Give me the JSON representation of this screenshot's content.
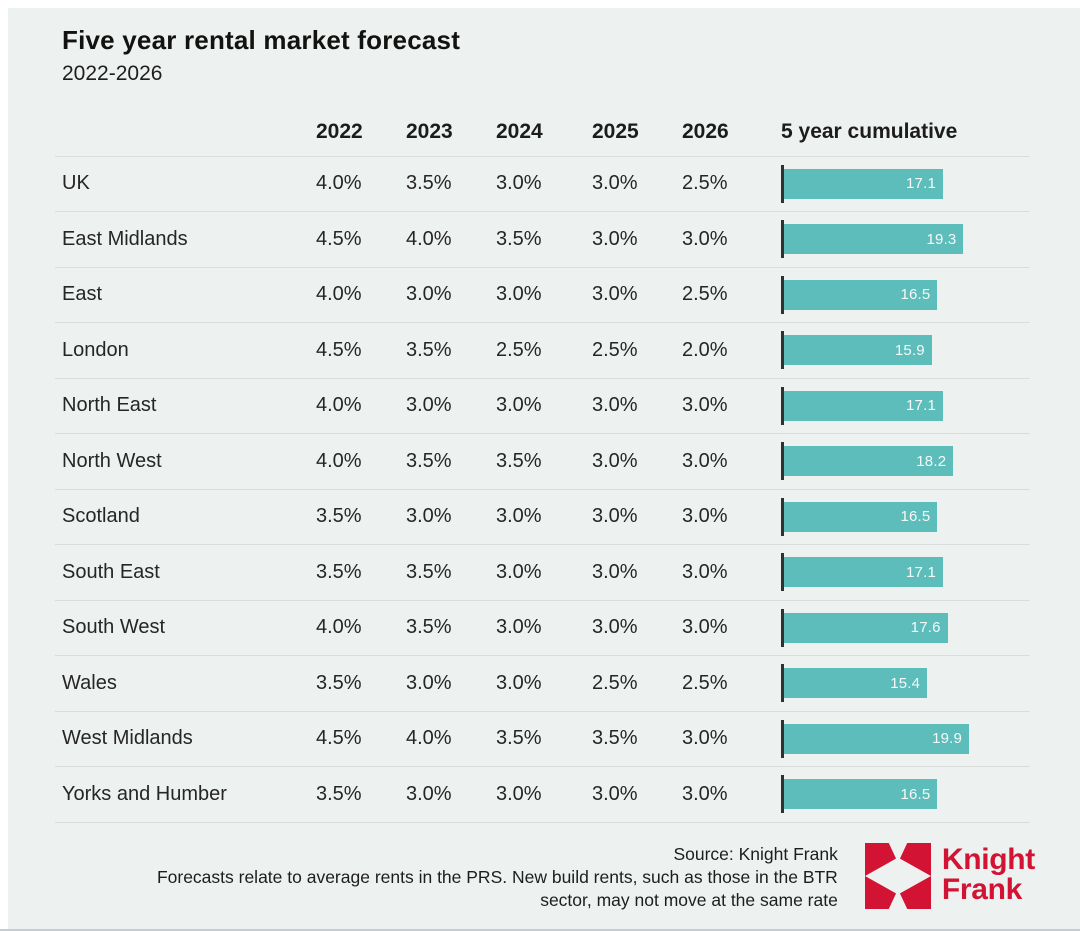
{
  "title": "Five year rental market forecast",
  "subtitle": "2022-2026",
  "table": {
    "region_header": "",
    "columns": [
      "2022",
      "2023",
      "2024",
      "2025",
      "2026"
    ],
    "cumulative_header": "5 year cumulative",
    "rows": [
      {
        "region": "UK",
        "values": [
          "4.0%",
          "3.5%",
          "3.0%",
          "3.0%",
          "2.5%"
        ],
        "cumulative": "17.1"
      },
      {
        "region": "East Midlands",
        "values": [
          "4.5%",
          "4.0%",
          "3.5%",
          "3.0%",
          "3.0%"
        ],
        "cumulative": "19.3"
      },
      {
        "region": "East",
        "values": [
          "4.0%",
          "3.0%",
          "3.0%",
          "3.0%",
          "2.5%"
        ],
        "cumulative": "16.5"
      },
      {
        "region": "London",
        "values": [
          "4.5%",
          "3.5%",
          "2.5%",
          "2.5%",
          "2.0%"
        ],
        "cumulative": "15.9"
      },
      {
        "region": "North East",
        "values": [
          "4.0%",
          "3.0%",
          "3.0%",
          "3.0%",
          "3.0%"
        ],
        "cumulative": "17.1"
      },
      {
        "region": "North West",
        "values": [
          "4.0%",
          "3.5%",
          "3.5%",
          "3.0%",
          "3.0%"
        ],
        "cumulative": "18.2"
      },
      {
        "region": "Scotland",
        "values": [
          "3.5%",
          "3.0%",
          "3.0%",
          "3.0%",
          "3.0%"
        ],
        "cumulative": "16.5"
      },
      {
        "region": "South East",
        "values": [
          "3.5%",
          "3.5%",
          "3.0%",
          "3.0%",
          "3.0%"
        ],
        "cumulative": "17.1"
      },
      {
        "region": "South West",
        "values": [
          "4.0%",
          "3.5%",
          "3.0%",
          "3.0%",
          "3.0%"
        ],
        "cumulative": "17.6"
      },
      {
        "region": "Wales",
        "values": [
          "3.5%",
          "3.0%",
          "3.0%",
          "2.5%",
          "2.5%"
        ],
        "cumulative": "15.4"
      },
      {
        "region": "West Midlands",
        "values": [
          "4.5%",
          "4.0%",
          "3.5%",
          "3.5%",
          "3.0%"
        ],
        "cumulative": "19.9"
      },
      {
        "region": "Yorks and Humber",
        "values": [
          "3.5%",
          "3.0%",
          "3.0%",
          "3.0%",
          "3.0%"
        ],
        "cumulative": "16.5"
      }
    ]
  },
  "footer": {
    "source": "Source: Knight Frank",
    "note_lines": [
      "Forecasts relate to average rents in the PRS. New build rents, such as those in the BTR",
      "sector, may not move at the same rate"
    ],
    "logo_line1": "Knight",
    "logo_line2": "Frank"
  },
  "colors": {
    "background": "#edf1f0",
    "bar_teal": "#5cbdbb",
    "brand_red": "#d21333",
    "separator": "#d9dddc",
    "text": "#1e1e1c",
    "baseline": "#2e3331"
  },
  "chart_data": {
    "type": "table",
    "title": "Five year rental market forecast",
    "subtitle": "2022-2026",
    "columns": [
      "2022",
      "2023",
      "2024",
      "2025",
      "2026",
      "5 year cumulative"
    ],
    "bar_column": "5 year cumulative",
    "bar_range": [
      0,
      20
    ],
    "series": [
      {
        "name": "UK",
        "yearly_pct": [
          4.0,
          3.5,
          3.0,
          3.0,
          2.5
        ],
        "cumulative": 17.1
      },
      {
        "name": "East Midlands",
        "yearly_pct": [
          4.5,
          4.0,
          3.5,
          3.0,
          3.0
        ],
        "cumulative": 19.3
      },
      {
        "name": "East",
        "yearly_pct": [
          4.0,
          3.0,
          3.0,
          3.0,
          2.5
        ],
        "cumulative": 16.5
      },
      {
        "name": "London",
        "yearly_pct": [
          4.5,
          3.5,
          2.5,
          2.5,
          2.0
        ],
        "cumulative": 15.9
      },
      {
        "name": "North East",
        "yearly_pct": [
          4.0,
          3.0,
          3.0,
          3.0,
          3.0
        ],
        "cumulative": 17.1
      },
      {
        "name": "North West",
        "yearly_pct": [
          4.0,
          3.5,
          3.5,
          3.0,
          3.0
        ],
        "cumulative": 18.2
      },
      {
        "name": "Scotland",
        "yearly_pct": [
          3.5,
          3.0,
          3.0,
          3.0,
          3.0
        ],
        "cumulative": 16.5
      },
      {
        "name": "South East",
        "yearly_pct": [
          3.5,
          3.5,
          3.0,
          3.0,
          3.0
        ],
        "cumulative": 17.1
      },
      {
        "name": "South West",
        "yearly_pct": [
          4.0,
          3.5,
          3.0,
          3.0,
          3.0
        ],
        "cumulative": 17.6
      },
      {
        "name": "Wales",
        "yearly_pct": [
          3.5,
          3.0,
          3.0,
          2.5,
          2.5
        ],
        "cumulative": 15.4
      },
      {
        "name": "West Midlands",
        "yearly_pct": [
          4.5,
          4.0,
          3.5,
          3.5,
          3.0
        ],
        "cumulative": 19.9
      },
      {
        "name": "Yorks and Humber",
        "yearly_pct": [
          3.5,
          3.0,
          3.0,
          3.0,
          3.0
        ],
        "cumulative": 16.5
      }
    ],
    "source": "Source: Knight Frank",
    "note": "Forecasts relate to average rents in the PRS. New build rents, such as those in the BTR sector, may not move at the same rate"
  }
}
